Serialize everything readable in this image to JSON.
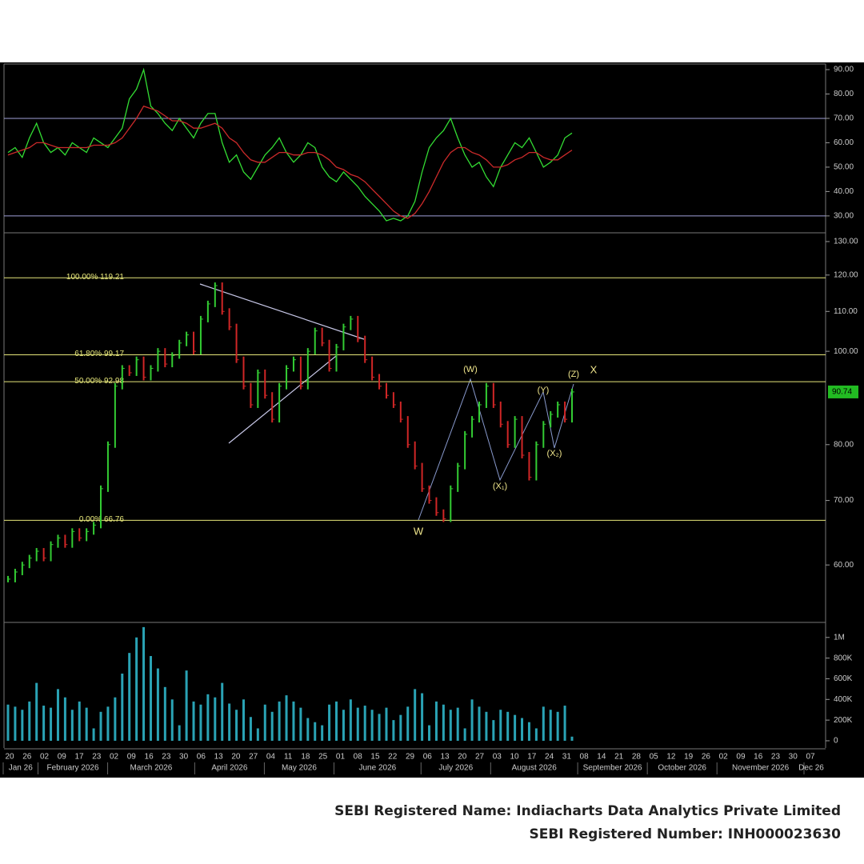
{
  "chart_data": [
    {
      "type": "line",
      "ylim": [
        23.4,
        92.3
      ],
      "yticks": [
        {
          "value": 90,
          "label": "90.00"
        },
        {
          "value": 80,
          "label": "80.00"
        },
        {
          "value": 70,
          "label": "70.00"
        },
        {
          "value": 60,
          "label": "60.00"
        },
        {
          "value": 50,
          "label": "50.00"
        },
        {
          "value": 40,
          "label": "40.00"
        },
        {
          "value": 30,
          "label": "30.00"
        }
      ],
      "levels": [
        70,
        30
      ],
      "level_color": "#a0a0d8",
      "series": [
        {
          "color": "#33dd33",
          "values": [
            56,
            58,
            54,
            62,
            68,
            60,
            56,
            58,
            55,
            60,
            58,
            56,
            62,
            60,
            58,
            62,
            66,
            78,
            82,
            90,
            75,
            72,
            68,
            65,
            70,
            66,
            62,
            68,
            72,
            72,
            60,
            52,
            55,
            48,
            45,
            50,
            55,
            58,
            62,
            56,
            52,
            55,
            60,
            58,
            50,
            46,
            44,
            48,
            45,
            42,
            38,
            35,
            32,
            28,
            29,
            28,
            30,
            36,
            48,
            58,
            62,
            65,
            70,
            62,
            55,
            50,
            52,
            46,
            42,
            50,
            55,
            60,
            58,
            62,
            56,
            50,
            52,
            55,
            62,
            64
          ]
        },
        {
          "color": "#cc2a2a",
          "values": [
            55,
            56,
            57,
            58,
            60,
            60,
            59,
            58,
            58,
            58,
            58,
            58,
            59,
            59,
            59,
            60,
            62,
            66,
            70,
            75,
            74,
            73,
            71,
            69,
            69,
            68,
            66,
            66,
            67,
            68,
            66,
            62,
            60,
            56,
            53,
            52,
            52,
            54,
            56,
            56,
            55,
            55,
            56,
            56,
            55,
            53,
            50,
            49,
            47,
            46,
            44,
            41,
            38,
            35,
            32,
            30,
            29,
            31,
            35,
            40,
            46,
            52,
            56,
            58,
            58,
            56,
            55,
            53,
            50,
            50,
            51,
            53,
            54,
            56,
            56,
            54,
            53,
            53,
            55,
            57
          ]
        }
      ]
    },
    {
      "type": "ohlc",
      "log": true,
      "ylim": [
        52.3,
        132.5
      ],
      "yticks": [
        {
          "value": 130,
          "label": "130.00"
        },
        {
          "value": 120,
          "label": "120.00"
        },
        {
          "value": 110,
          "label": "110.00"
        },
        {
          "value": 100,
          "label": "100.00"
        },
        {
          "value": 80,
          "label": "80.00"
        },
        {
          "value": 70,
          "label": "70.00"
        },
        {
          "value": 60,
          "label": "60.00"
        }
      ],
      "values": [
        58,
        59,
        60,
        61,
        62,
        61,
        63,
        64,
        63,
        65,
        64,
        65,
        66,
        72,
        80,
        92,
        96,
        95,
        98,
        94,
        96,
        100,
        97,
        99,
        102,
        104,
        100,
        108,
        112,
        117,
        110,
        106,
        98,
        92,
        88,
        95,
        90,
        85,
        92,
        96,
        98,
        92,
        100,
        105,
        102,
        96,
        101,
        106,
        108,
        103,
        98,
        94,
        92,
        90,
        88,
        85,
        80,
        76,
        72,
        70,
        68,
        67,
        72,
        76,
        82,
        85,
        88,
        92,
        88,
        84,
        80,
        85,
        78,
        74,
        80,
        84,
        86,
        88,
        85,
        90.74
      ],
      "up_color": "#33cc33",
      "down_color": "#d02626",
      "levels": [
        {
          "value": 119.21,
          "label": "100.00% 119.21"
        },
        {
          "value": 99.17,
          "label": "61.80% 99.17"
        },
        {
          "value": 92.98,
          "label": "50.00% 92.98"
        },
        {
          "value": 66.76,
          "label": "0.00% 66.76"
        }
      ],
      "level_color": "#e6e67a",
      "last": 90.74,
      "last_color": "#22bb22",
      "annotations": [
        "W",
        "(W)",
        "(X₁)",
        "(Y)",
        "(X₂)",
        "(Z)",
        "X"
      ],
      "annotation_color": "#f0e68c"
    },
    {
      "type": "bar",
      "ylim": [
        -70000,
        1130000
      ],
      "yticks": [
        {
          "value": 1000000,
          "label": "1M"
        },
        {
          "value": 800000,
          "label": "800K"
        },
        {
          "value": 600000,
          "label": "600K"
        },
        {
          "value": 400000,
          "label": "400K"
        },
        {
          "value": 200000,
          "label": "200K"
        },
        0
      ],
      "color": "#2aa3b5",
      "values": [
        350000,
        330000,
        300000,
        380000,
        560000,
        340000,
        320000,
        500000,
        420000,
        300000,
        380000,
        320000,
        120000,
        280000,
        330000,
        420000,
        650000,
        850000,
        1000000,
        1100000,
        820000,
        700000,
        520000,
        400000,
        150000,
        680000,
        380000,
        350000,
        450000,
        420000,
        560000,
        360000,
        300000,
        400000,
        230000,
        120000,
        350000,
        280000,
        380000,
        440000,
        380000,
        320000,
        220000,
        180000,
        150000,
        350000,
        380000,
        300000,
        400000,
        320000,
        340000,
        300000,
        260000,
        320000,
        200000,
        250000,
        330000,
        500000,
        460000,
        150000,
        380000,
        350000,
        300000,
        320000,
        120000,
        400000,
        330000,
        280000,
        200000,
        300000,
        280000,
        250000,
        220000,
        180000,
        120000,
        330000,
        300000,
        280000,
        340000,
        40000
      ]
    }
  ],
  "date_axis": {
    "days": [
      "20",
      "26",
      "02",
      "09",
      "17",
      "23",
      "02",
      "09",
      "16",
      "23",
      "30",
      "06",
      "13",
      "20",
      "27",
      "04",
      "11",
      "18",
      "25",
      "01",
      "08",
      "15",
      "22",
      "29",
      "06",
      "13",
      "20",
      "27",
      "03",
      "10",
      "17",
      "24",
      "31",
      "08",
      "14",
      "21",
      "28",
      "05",
      "12",
      "19",
      "26",
      "02",
      "09",
      "16",
      "23",
      "30",
      "07"
    ],
    "months": [
      "Jan 26",
      "February 2026",
      "March 2026",
      "April 2026",
      "May 2026",
      "June 2026",
      "July 2026",
      "August 2026",
      "September 2026",
      "October 2026",
      "November 2026",
      "Dec 26"
    ]
  },
  "footer": {
    "name": "SEBI Registered Name: Indiacharts Data Analytics Private Limited",
    "number": "SEBI Registered Number: INH000023630"
  }
}
